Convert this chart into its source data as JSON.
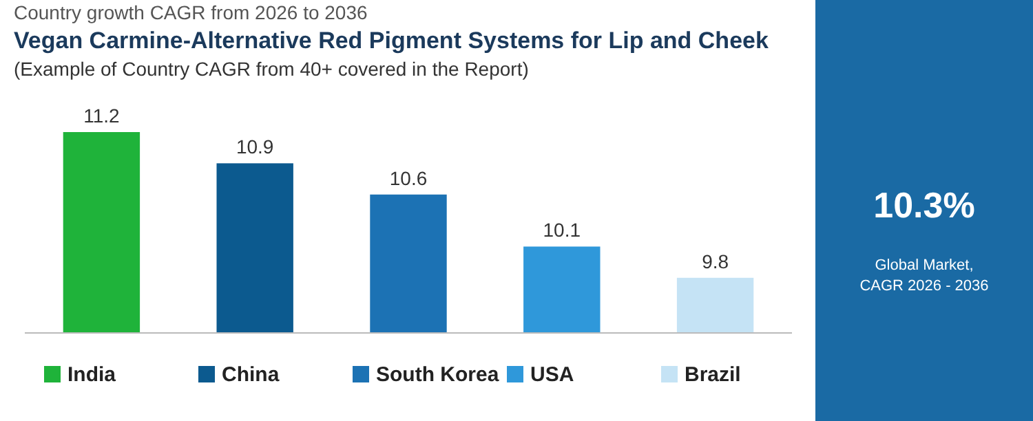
{
  "chart_data": [
    {
      "type": "bar",
      "title": "Vegan Carmine-Alternative Red Pigment Systems for Lip and Cheek",
      "subtitle": "(Example of Country CAGR from 40+ covered in the Report)",
      "annotations": [
        "Country growth CAGR from 2026 to 2036"
      ],
      "categories": [
        "India",
        "China",
        "South Korea",
        "USA",
        "Brazil"
      ],
      "values": [
        11.2,
        10.9,
        10.6,
        10.1,
        9.8
      ],
      "colors": [
        "#1fb33a",
        "#0c5a8f",
        "#1c72b4",
        "#2f98da",
        "#c5e3f5"
      ],
      "ylim": [
        9.27,
        11.2
      ],
      "data_labels": true
    },
    {
      "type": "other",
      "title": "10.3%",
      "annotations": [
        "Global Market,",
        "CAGR 2026 - 2036"
      ]
    }
  ]
}
